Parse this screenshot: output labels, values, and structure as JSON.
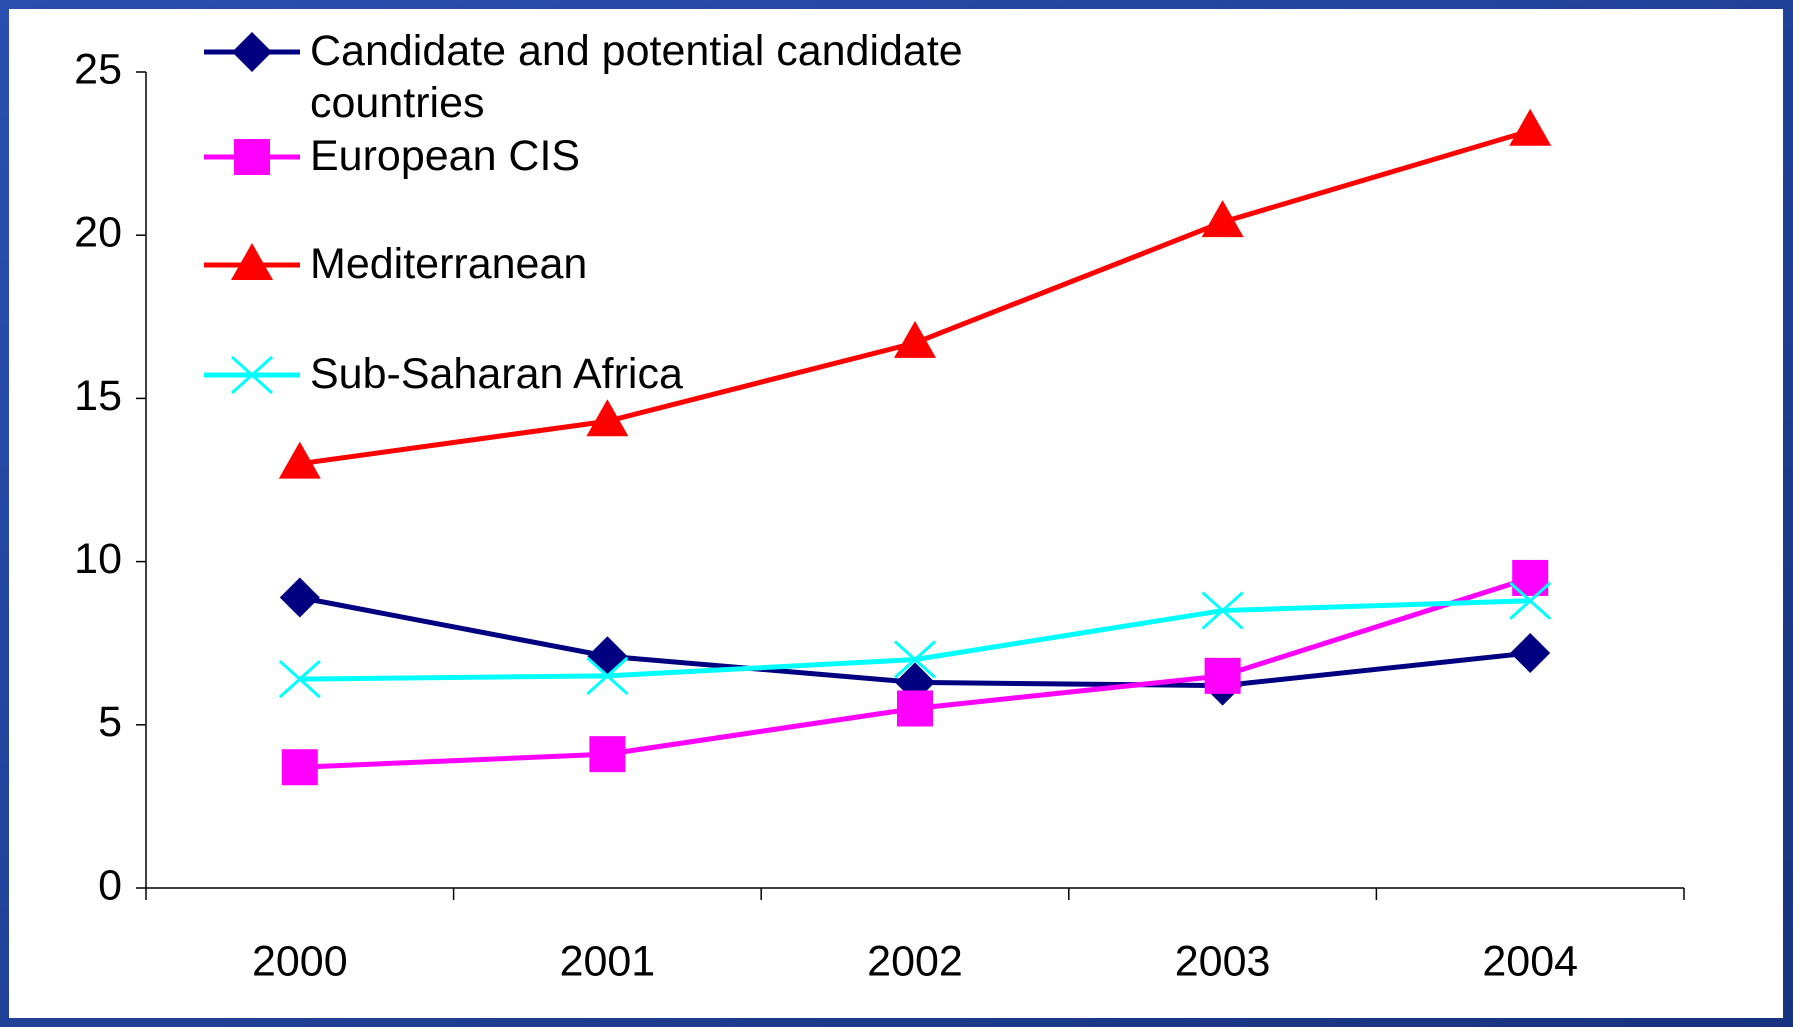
{
  "chart_data": {
    "type": "line",
    "categories": [
      "2000",
      "2001",
      "2002",
      "2003",
      "2004"
    ],
    "series": [
      {
        "name": "Candidate and potential candidate countries",
        "color": "#000080",
        "marker": "diamond",
        "values": [
          8.9,
          7.1,
          6.3,
          6.2,
          7.2
        ]
      },
      {
        "name": "European CIS",
        "color": "#ff00ff",
        "marker": "square",
        "values": [
          3.7,
          4.1,
          5.5,
          6.5,
          9.5
        ]
      },
      {
        "name": "Mediterranean",
        "color": "#ff0000",
        "marker": "triangle",
        "values": [
          13.0,
          14.3,
          16.7,
          20.4,
          23.2
        ]
      },
      {
        "name": "Sub-Saharan Africa",
        "color": "#00ffff",
        "marker": "x",
        "values": [
          6.4,
          6.5,
          7.0,
          8.5,
          8.8
        ]
      }
    ],
    "ylim": [
      0,
      25
    ],
    "yticks": [
      0,
      5,
      10,
      15,
      20,
      25
    ],
    "grid": false
  }
}
